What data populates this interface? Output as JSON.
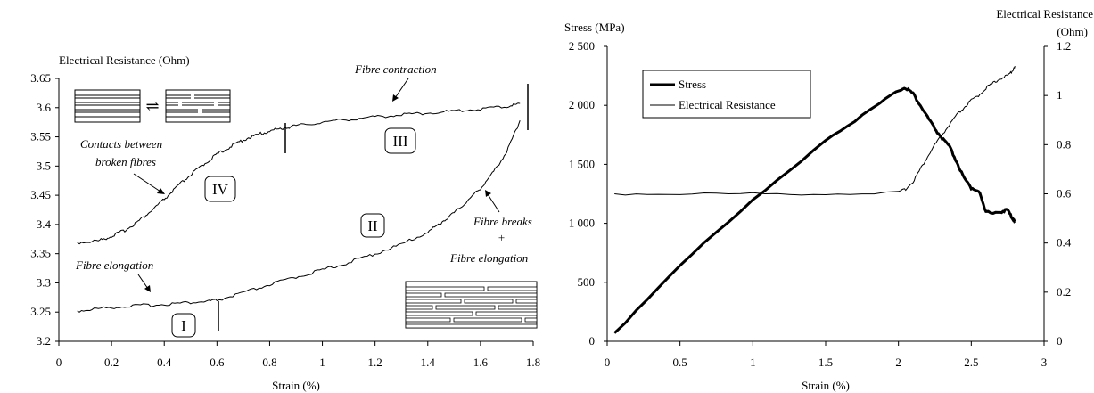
{
  "chart_data": [
    {
      "type": "line",
      "xlabel": "Strain (%)",
      "ylabel": "Electrical Resistance (Ohm)",
      "xlim": [
        0,
        1.8
      ],
      "ylim": [
        3.2,
        3.65
      ],
      "x_ticks": [
        "0",
        "0.2",
        "0.4",
        "0.6",
        "0.8",
        "1",
        "1.2",
        "1.4",
        "1.6",
        "1.8"
      ],
      "y_ticks": [
        "3.2",
        "3.25",
        "3.3",
        "3.35",
        "3.4",
        "3.45",
        "3.5",
        "3.55",
        "3.6",
        "3.65"
      ],
      "series": [
        {
          "values_x": [
            0.07,
            0.15,
            0.25,
            0.35,
            0.45,
            0.55,
            0.6,
            0.7,
            0.8,
            0.9,
            1.0,
            1.1,
            1.2,
            1.3,
            1.4,
            1.45,
            1.5,
            1.55,
            1.6,
            1.65,
            1.7,
            1.75
          ],
          "values_y": [
            3.252,
            3.256,
            3.26,
            3.262,
            3.265,
            3.268,
            3.27,
            3.283,
            3.297,
            3.31,
            3.322,
            3.335,
            3.35,
            3.366,
            3.387,
            3.403,
            3.42,
            3.44,
            3.462,
            3.49,
            3.525,
            3.578
          ]
        },
        {
          "values_x": [
            0.07,
            0.15,
            0.2,
            0.25,
            0.3,
            0.35,
            0.4,
            0.45,
            0.5,
            0.55,
            0.6,
            0.65,
            0.7,
            0.75,
            0.8,
            0.85,
            0.9,
            1.0,
            1.1,
            1.2,
            1.3,
            1.4,
            1.5,
            1.6,
            1.7,
            1.75
          ],
          "values_y": [
            3.369,
            3.372,
            3.38,
            3.39,
            3.405,
            3.423,
            3.443,
            3.465,
            3.485,
            3.503,
            3.52,
            3.533,
            3.545,
            3.553,
            3.56,
            3.565,
            3.569,
            3.575,
            3.58,
            3.584,
            3.588,
            3.591,
            3.594,
            3.598,
            3.602,
            3.607
          ]
        }
      ],
      "annotations": {
        "fibre_contraction": "Fibre contraction",
        "contacts_line1": "Contacts between",
        "contacts_line2": "broken fibres",
        "fibre_elongation": "Fibre elongation",
        "fibre_breaks": "Fibre breaks",
        "plus": "+",
        "fibre_elongation_2": "Fibre elongation"
      },
      "regions": [
        "I",
        "II",
        "III",
        "IV"
      ]
    },
    {
      "type": "line",
      "xlabel": "Strain (%)",
      "ylabel": "Stress (MPa)",
      "y2label_line1": "Electrical Resistance",
      "y2label_line2": "(Ohm)",
      "xlim": [
        0,
        3
      ],
      "ylim": [
        0,
        2500
      ],
      "y2lim": [
        0,
        1.2
      ],
      "x_ticks": [
        "0",
        "0.5",
        "1",
        "1.5",
        "2",
        "2.5",
        "3"
      ],
      "y_ticks": [
        "0",
        "500",
        "1 000",
        "1 500",
        "2 000",
        "2 500"
      ],
      "y2_ticks": [
        "0",
        "0.2",
        "0.4",
        "0.6",
        "0.8",
        "1",
        "1.2"
      ],
      "legend_position": "top-left",
      "series": [
        {
          "name": "Stress",
          "axis": "left",
          "values_x": [
            0.05,
            0.5,
            1.0,
            1.5,
            1.8,
            2.02,
            2.05,
            2.1,
            2.15,
            2.2,
            2.25,
            2.3,
            2.35,
            2.4,
            2.45,
            2.5,
            2.55,
            2.6,
            2.7,
            2.75,
            2.78,
            2.8
          ],
          "values_y": [
            70,
            650,
            1190,
            1710,
            1950,
            2140,
            2150,
            2100,
            2000,
            1900,
            1800,
            1720,
            1650,
            1520,
            1380,
            1300,
            1280,
            1090,
            1100,
            1110,
            1050,
            1020
          ]
        },
        {
          "name": "Electrical Resistance",
          "axis": "right",
          "values_x": [
            0.05,
            0.5,
            1.0,
            1.5,
            2.0,
            2.05,
            2.1,
            2.15,
            2.2,
            2.25,
            2.3,
            2.35,
            2.4,
            2.45,
            2.5,
            2.55,
            2.6,
            2.65,
            2.7,
            2.75,
            2.78,
            2.8
          ],
          "values_y": [
            0.6,
            0.6,
            0.6,
            0.6,
            0.605,
            0.62,
            0.65,
            0.7,
            0.75,
            0.8,
            0.84,
            0.88,
            0.92,
            0.95,
            0.98,
            1.0,
            1.03,
            1.05,
            1.07,
            1.08,
            1.1,
            1.12
          ]
        }
      ]
    }
  ]
}
